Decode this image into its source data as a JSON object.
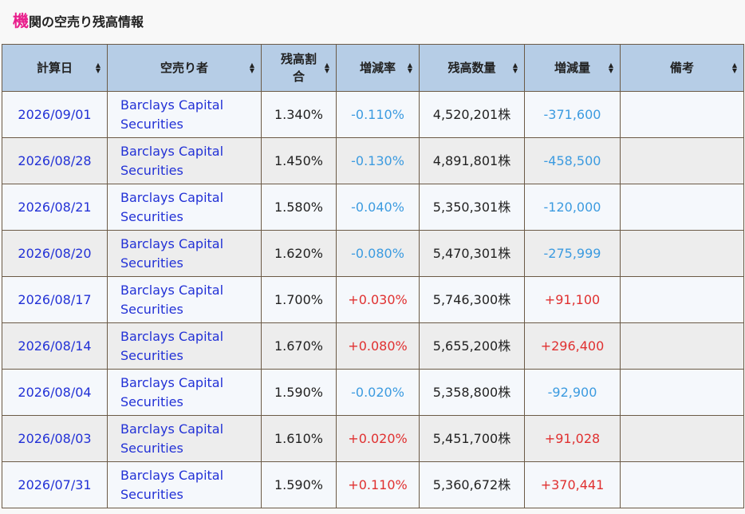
{
  "page": {
    "title_accent": "機",
    "title_rest": "関の空売り残高情報"
  },
  "table": {
    "headers": [
      "計算日",
      "空売り者",
      "残高割合",
      "増減率",
      "残高数量",
      "増減量",
      "備考"
    ],
    "rows": [
      {
        "date": "2026/09/01",
        "org_line1": "Barclays Capital",
        "org_line2": "Securities",
        "ratio": "1.340%",
        "rate": "-0.110%",
        "qty": "4,520,201株",
        "change": "-371,600",
        "note": ""
      },
      {
        "date": "2026/08/28",
        "org_line1": "Barclays Capital",
        "org_line2": "Securities",
        "ratio": "1.450%",
        "rate": "-0.130%",
        "qty": "4,891,801株",
        "change": "-458,500",
        "note": ""
      },
      {
        "date": "2026/08/21",
        "org_line1": "Barclays Capital",
        "org_line2": "Securities",
        "ratio": "1.580%",
        "rate": "-0.040%",
        "qty": "5,350,301株",
        "change": "-120,000",
        "note": ""
      },
      {
        "date": "2026/08/20",
        "org_line1": "Barclays Capital",
        "org_line2": "Securities",
        "ratio": "1.620%",
        "rate": "-0.080%",
        "qty": "5,470,301株",
        "change": "-275,999",
        "note": ""
      },
      {
        "date": "2026/08/17",
        "org_line1": "Barclays Capital",
        "org_line2": "Securities",
        "ratio": "1.700%",
        "rate": "+0.030%",
        "qty": "5,746,300株",
        "change": "+91,100",
        "note": ""
      },
      {
        "date": "2026/08/14",
        "org_line1": "Barclays Capital",
        "org_line2": "Securities",
        "ratio": "1.670%",
        "rate": "+0.080%",
        "qty": "5,655,200株",
        "change": "+296,400",
        "note": ""
      },
      {
        "date": "2026/08/04",
        "org_line1": "Barclays Capital",
        "org_line2": "Securities",
        "ratio": "1.590%",
        "rate": "-0.020%",
        "qty": "5,358,800株",
        "change": "-92,900",
        "note": ""
      },
      {
        "date": "2026/08/03",
        "org_line1": "Barclays Capital",
        "org_line2": "Securities",
        "ratio": "1.610%",
        "rate": "+0.020%",
        "qty": "5,451,700株",
        "change": "+91,028",
        "note": ""
      },
      {
        "date": "2026/07/31",
        "org_line1": "Barclays Capital",
        "org_line2": "Securities",
        "ratio": "1.590%",
        "rate": "+0.110%",
        "qty": "5,360,672株",
        "change": "+370,441",
        "note": ""
      }
    ]
  },
  "colors": {
    "accent": "#e91e8c",
    "link": "#2231d6",
    "negative": "#3c9be0",
    "positive": "#e03030",
    "header_bg": "#b6cde6"
  }
}
